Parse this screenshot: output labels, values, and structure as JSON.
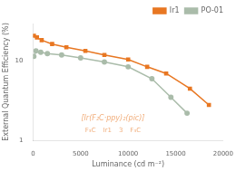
{
  "chart_data": {
    "type": "line",
    "xlabel": "Luminance (cd m⁻²)",
    "ylabel": "External Quantum Efficiency (%)",
    "series": [
      {
        "name": "Ir1",
        "color": "#E87722",
        "marker": "square",
        "x": [
          80,
          400,
          900,
          2000,
          3500,
          5500,
          7500,
          10000,
          12000,
          14000,
          16500,
          18500
        ],
        "values": [
          21.0,
          20.0,
          18.5,
          16.5,
          15.0,
          13.5,
          12.0,
          10.5,
          8.5,
          7.0,
          4.5,
          2.8
        ]
      },
      {
        "name": "PO-01",
        "color": "#AABCAA",
        "marker": "circle",
        "x": [
          80,
          300,
          800,
          1500,
          3000,
          5000,
          7500,
          10000,
          12500,
          14500,
          16200
        ],
        "values": [
          11.5,
          13.5,
          13.0,
          12.5,
          12.0,
          11.0,
          9.8,
          8.5,
          6.0,
          3.5,
          2.2
        ]
      }
    ],
    "xlim": [
      0,
      20000
    ],
    "ylim": [
      1,
      30
    ],
    "xticks": [
      0,
      5000,
      10000,
      15000,
      20000
    ],
    "yticks": [
      1,
      10
    ],
    "log": "y",
    "grid": false,
    "legend": "upper right",
    "annotations": [
      {
        "text": "[Ir(F₂C·ppy)₂(pic)]",
        "color": "#E87722"
      },
      {
        "text": "F₃C",
        "color": "#E87722"
      },
      {
        "text": "Ir1",
        "color": "#E87722"
      },
      {
        "text": "3",
        "color": "#E87722"
      },
      {
        "text": "F₃C",
        "color": "#E87722"
      }
    ]
  }
}
